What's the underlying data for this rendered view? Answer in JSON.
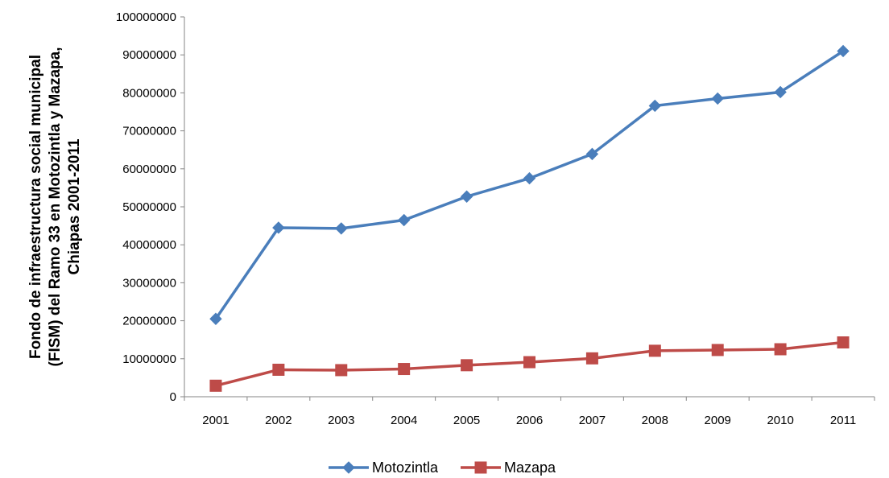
{
  "chart_data": {
    "type": "line",
    "title": "",
    "xlabel": "",
    "ylabel_lines": [
      "Fondo de infraestructura social municipal",
      "(FISM) del Ramo 33 en Motozintla y Mazapa,",
      "Chiapas 2001-2011"
    ],
    "categories": [
      "2001",
      "2002",
      "2003",
      "2004",
      "2005",
      "2006",
      "2007",
      "2008",
      "2009",
      "2010",
      "2011"
    ],
    "ylim": [
      0,
      100000000
    ],
    "yticks": [
      "0",
      "10000000",
      "20000000",
      "30000000",
      "40000000",
      "50000000",
      "60000000",
      "70000000",
      "80000000",
      "90000000",
      "100000000"
    ],
    "grid": false,
    "legend_position": "bottom",
    "series": [
      {
        "name": "Motozintla",
        "color": "#4a7ebb",
        "marker": "diamond",
        "values": [
          20500000,
          44500000,
          44300000,
          46500000,
          52700000,
          57500000,
          63900000,
          76600000,
          78500000,
          80200000,
          91000000
        ]
      },
      {
        "name": "Mazapa",
        "color": "#be4b48",
        "marker": "square",
        "values": [
          2900000,
          7100000,
          7000000,
          7300000,
          8300000,
          9100000,
          10100000,
          12100000,
          12300000,
          12500000,
          14300000
        ]
      }
    ]
  }
}
